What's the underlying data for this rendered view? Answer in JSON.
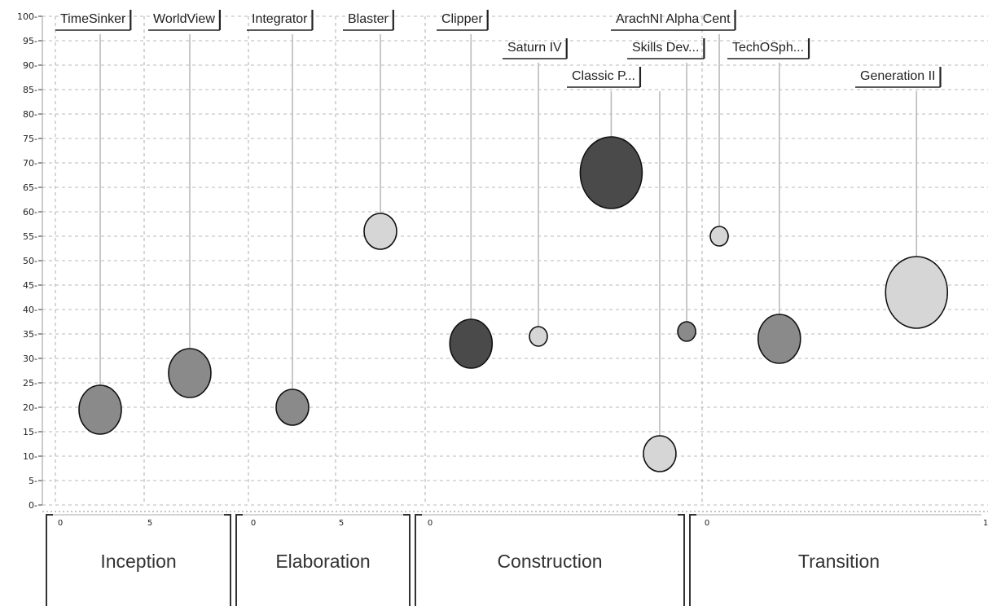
{
  "chart_data": {
    "type": "scatter",
    "subtype": "bubble",
    "title": "",
    "xlabel": "",
    "ylabel": "",
    "ylim": [
      0,
      100
    ],
    "yticks": [
      0,
      5,
      10,
      15,
      20,
      25,
      30,
      35,
      40,
      45,
      50,
      55,
      60,
      65,
      70,
      75,
      80,
      85,
      90,
      95,
      100
    ],
    "grid": true,
    "phases": [
      {
        "name": "Inception",
        "tick_labels": [
          "0",
          "5"
        ]
      },
      {
        "name": "Elaboration",
        "tick_labels": [
          "0",
          "5"
        ]
      },
      {
        "name": "Construction",
        "tick_labels": [
          "0"
        ]
      },
      {
        "name": "Transition",
        "tick_labels": [
          "0",
          "1"
        ]
      }
    ],
    "points": [
      {
        "label": "TimeSinker",
        "phase": "Inception",
        "x": 2.5,
        "y": 19.5,
        "size": "medium",
        "shade": "medium"
      },
      {
        "label": "WorldView",
        "phase": "Inception",
        "x": 7.5,
        "y": 27,
        "size": "medium",
        "shade": "medium"
      },
      {
        "label": "Integrator",
        "phase": "Elaboration",
        "x": 2.5,
        "y": 20,
        "size": "small",
        "shade": "medium"
      },
      {
        "label": "Blaster",
        "phase": "Elaboration",
        "x": 7.5,
        "y": 56,
        "size": "small",
        "shade": "light"
      },
      {
        "label": "Clipper",
        "phase": "Construction",
        "x": 0.17,
        "y": 33,
        "size": "medium",
        "shade": "dark"
      },
      {
        "label": "Saturn IV",
        "phase": "Construction",
        "x": 0.42,
        "y": 34.5,
        "size": "tiny",
        "shade": "light"
      },
      {
        "label": "Classic P...",
        "phase": "Construction",
        "x": 0.69,
        "y": 68,
        "size": "large",
        "shade": "dark"
      },
      {
        "label": "Skills Dev...",
        "phase": "Construction",
        "x": 0.97,
        "y": 35.5,
        "size": "tiny",
        "shade": "medium"
      },
      {
        "label": "Classic P...",
        "phase": "Construction",
        "x": 0.87,
        "y": 10.5,
        "size": "small",
        "shade": "light"
      },
      {
        "label": "ArachNI Alpha Cent",
        "phase": "Transition",
        "x": 0.06,
        "y": 55,
        "size": "tiny",
        "shade": "light"
      },
      {
        "label": "TechOSph...",
        "phase": "Transition",
        "x": 0.27,
        "y": 34,
        "size": "medium",
        "shade": "medium"
      },
      {
        "label": "Generation II",
        "phase": "Transition",
        "x": 0.75,
        "y": 43.5,
        "size": "large",
        "shade": "light"
      }
    ],
    "colors": {
      "dark": "#4a4a4a",
      "medium": "#8a8a8a",
      "light": "#d6d6d6"
    }
  }
}
